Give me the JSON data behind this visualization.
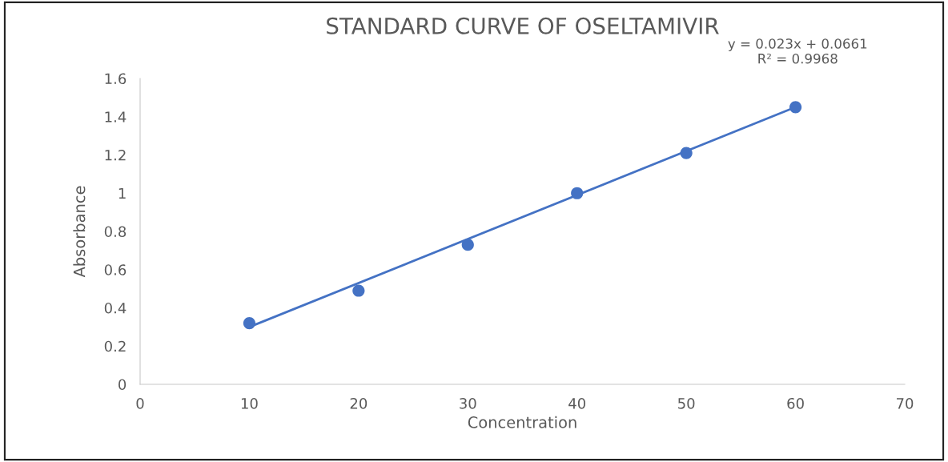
{
  "chart_data": {
    "type": "scatter",
    "title": "STANDARD CURVE OF OSELTAMIVIR",
    "xlabel": "Concentration",
    "ylabel": "Absorbance",
    "x": [
      10,
      20,
      30,
      40,
      50,
      60
    ],
    "series": [
      {
        "color": "#4472c4",
        "values": [
          0.32,
          0.49,
          0.73,
          1.0,
          1.21,
          1.45
        ],
        "marker": "circle"
      },
      {
        "type": "line",
        "color": "#4472c4",
        "x": [
          10,
          60
        ],
        "values": [
          0.3,
          1.45
        ],
        "marker": "none",
        "line_style": "solid"
      }
    ],
    "annotations": [
      "y = 0.023x + 0.0661\nR² = 0.9968"
    ],
    "xlim": [
      0,
      70
    ],
    "xticks": [
      0,
      10,
      20,
      30,
      40,
      50,
      60,
      70
    ],
    "ylim": [
      0,
      1.6
    ],
    "yticks": [
      0,
      0.2,
      0.4,
      0.6,
      0.8,
      1,
      1.2,
      1.4,
      1.6
    ],
    "grid": false
  }
}
